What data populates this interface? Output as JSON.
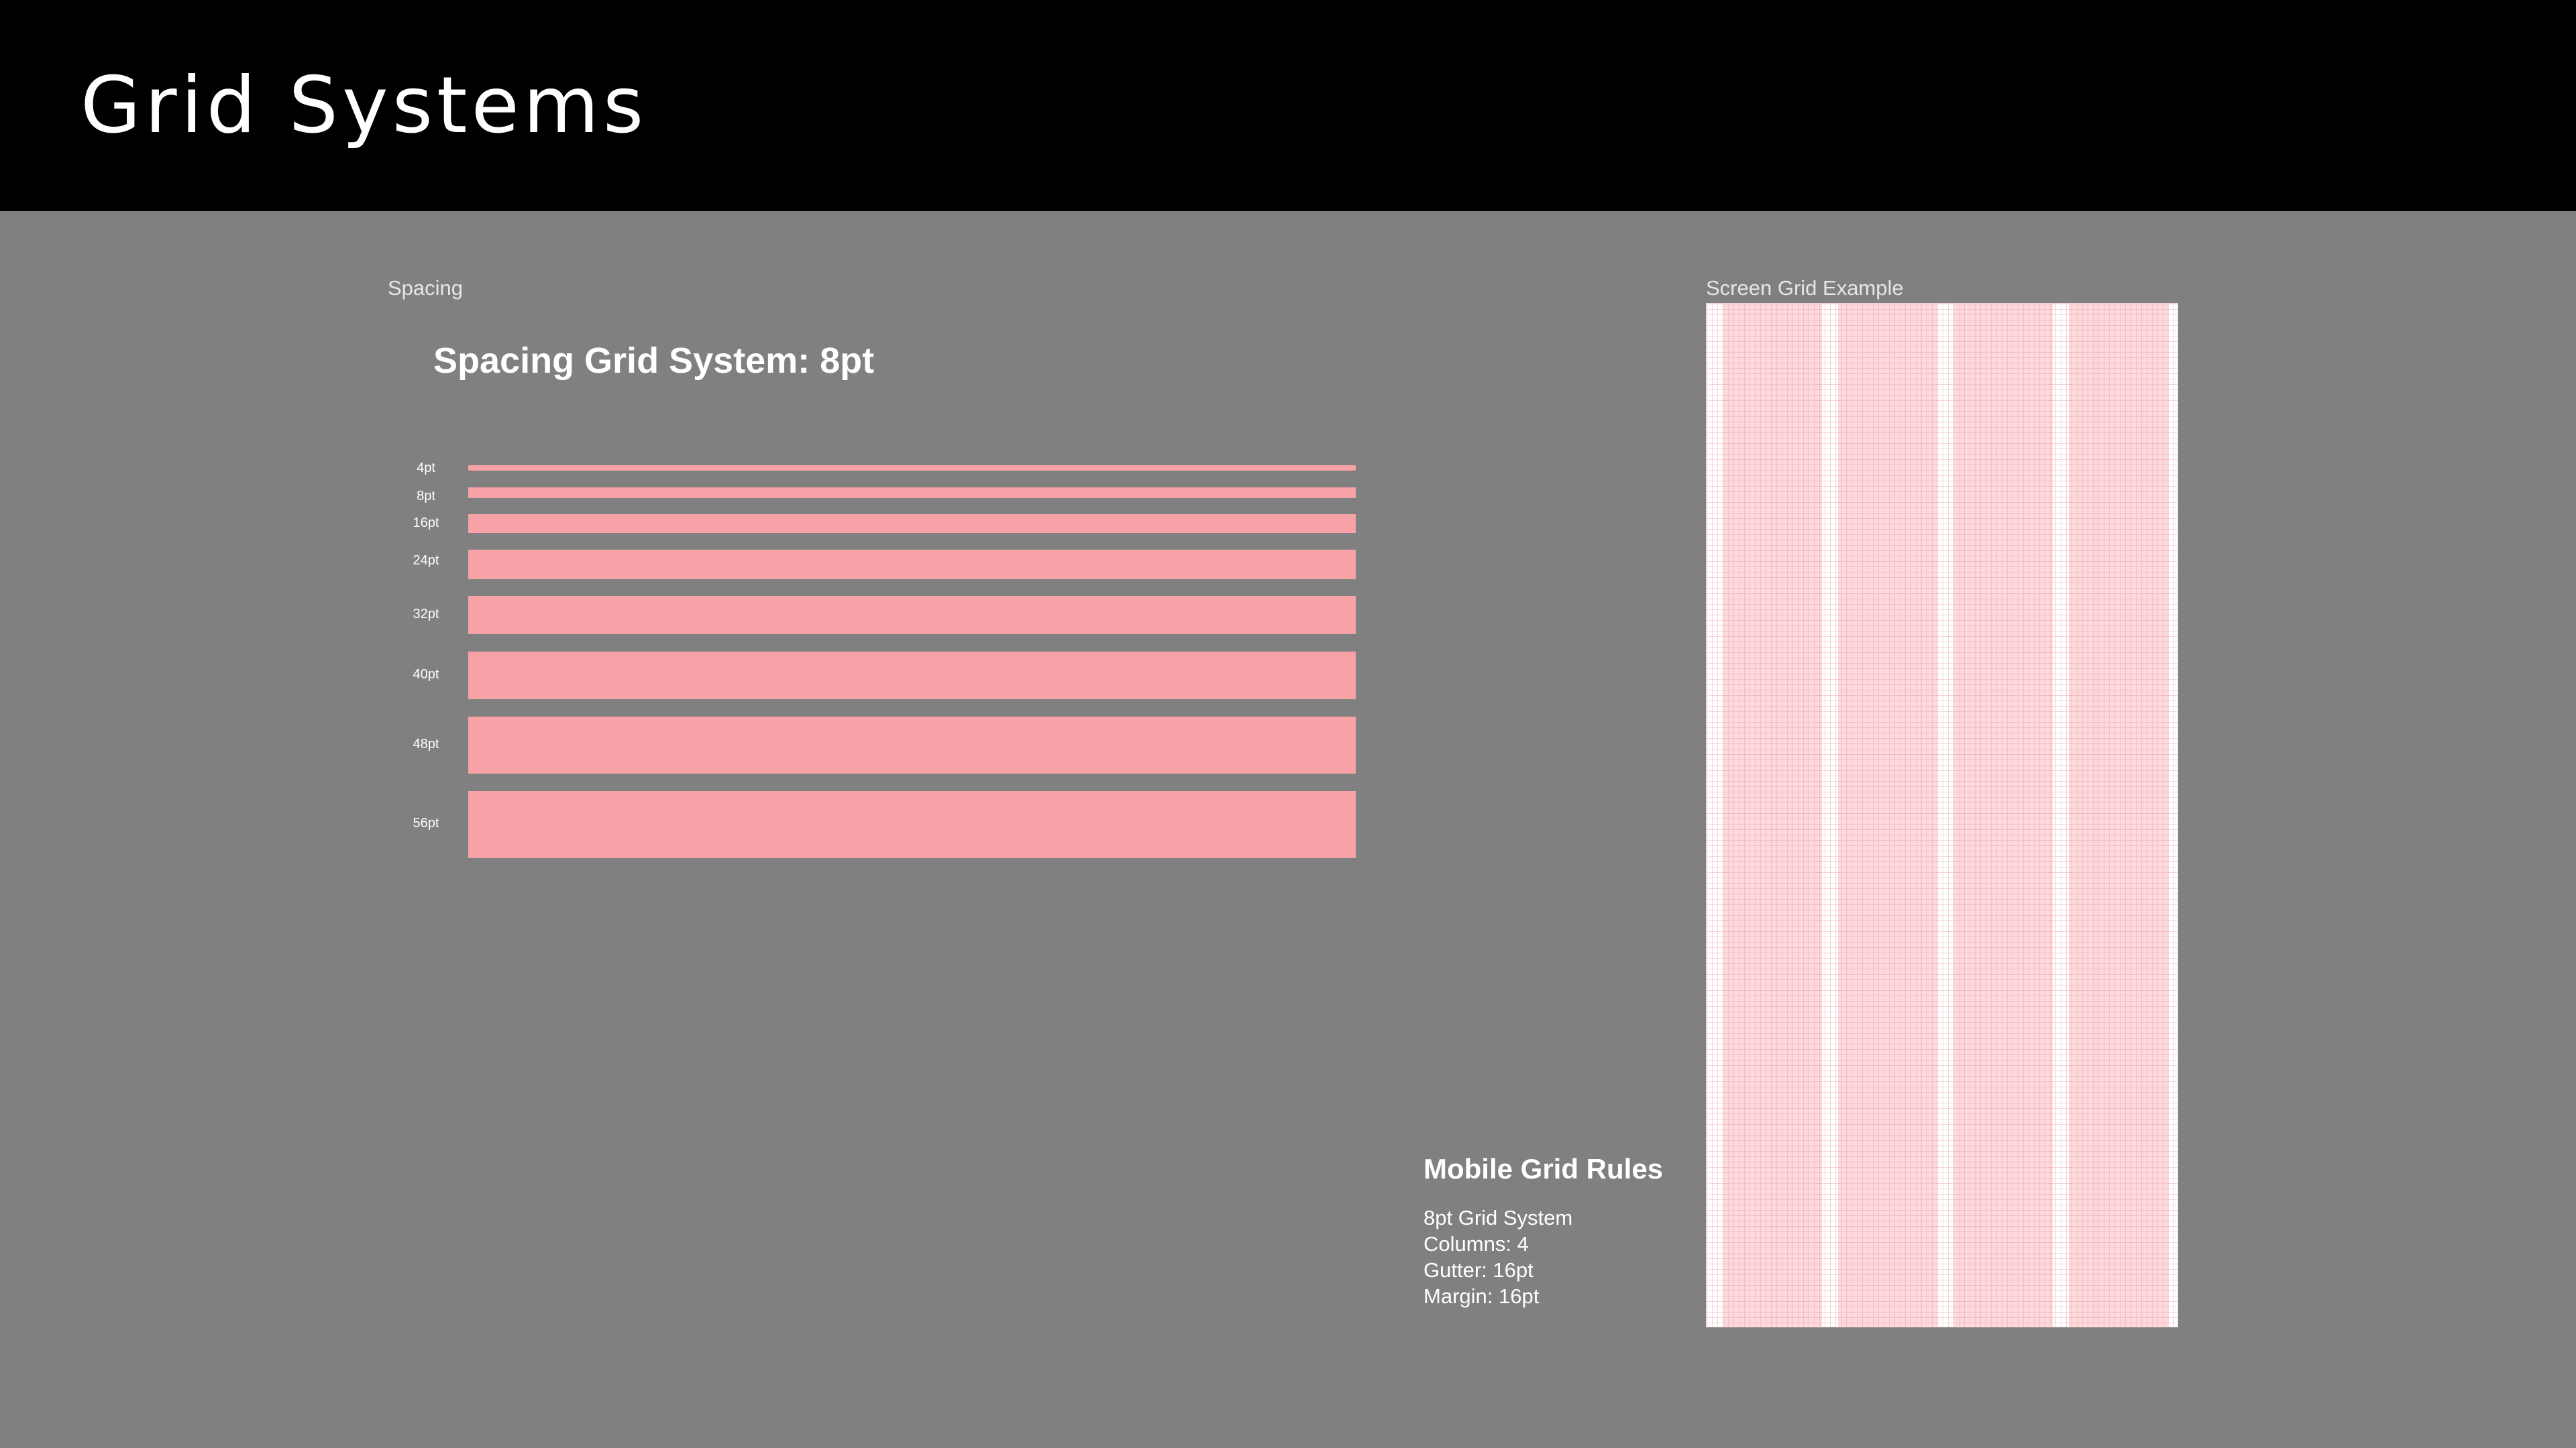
{
  "header": {
    "title": "Grid Systems"
  },
  "spacing_section": {
    "label": "Spacing",
    "title": "Spacing Grid System: 8pt",
    "scale": [
      {
        "label": "4pt",
        "value": 4
      },
      {
        "label": "8pt",
        "value": 8
      },
      {
        "label": "16pt",
        "value": 16
      },
      {
        "label": "24pt",
        "value": 24
      },
      {
        "label": "32pt",
        "value": 32
      },
      {
        "label": "40pt",
        "value": 40
      },
      {
        "label": "48pt",
        "value": 48
      },
      {
        "label": "56pt",
        "value": 56
      }
    ]
  },
  "screen_grid": {
    "label": "Screen Grid Example",
    "columns": 4
  },
  "mobile_rules": {
    "title": "Mobile Grid Rules",
    "items": [
      "8pt Grid System",
      "Columns: 4",
      "Gutter: 16pt",
      "Margin: 16pt"
    ]
  },
  "colors": {
    "header_background": "#000000",
    "canvas_background": "#808080",
    "bar_pink": "#f6a2a6",
    "column_pink": "#fdd9dc",
    "text_white": "#ffffff"
  }
}
